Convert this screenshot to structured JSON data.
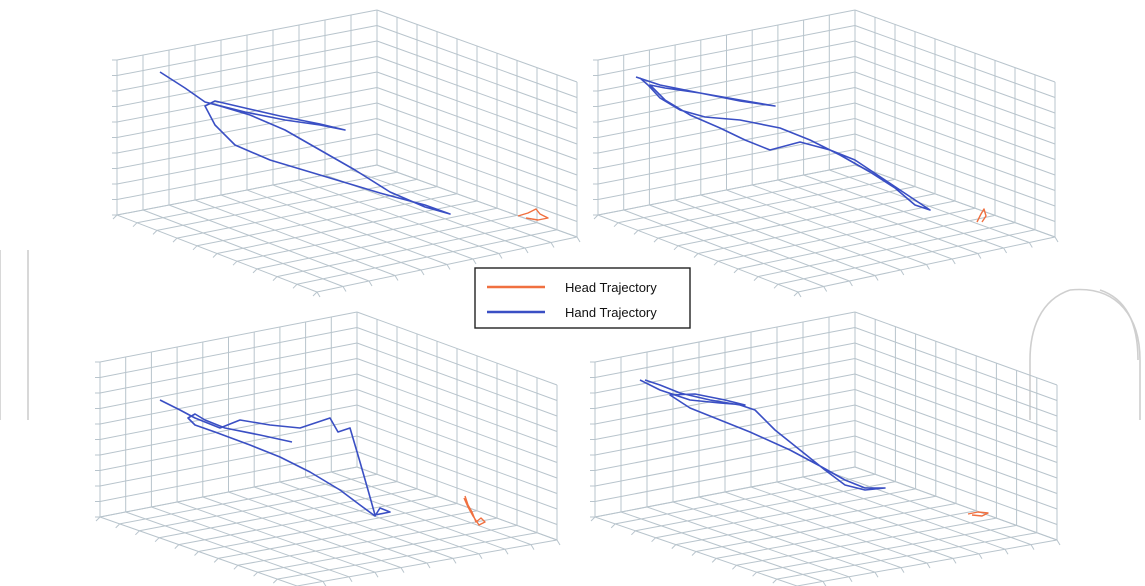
{
  "chart_data": {
    "type": "line",
    "plots": [
      {
        "id": "top-left",
        "series": [
          {
            "name": "Hand Trajectory",
            "points": [
              [
                160,
                72
              ],
              [
                185,
                88
              ],
              [
                205,
                102
              ],
              [
                245,
                112
              ],
              [
                285,
                120
              ],
              [
                320,
                125
              ],
              [
                345,
                130
              ],
              [
                320,
                124
              ],
              [
                280,
                116
              ],
              [
                245,
                108
              ],
              [
                215,
                101
              ],
              [
                205,
                106
              ],
              [
                215,
                125
              ],
              [
                235,
                145
              ],
              [
                270,
                160
              ],
              [
                320,
                175
              ],
              [
                380,
                193
              ],
              [
                425,
                205
              ],
              [
                450,
                214
              ],
              [
                425,
                207
              ],
              [
                390,
                192
              ],
              [
                355,
                170
              ],
              [
                320,
                150
              ],
              [
                285,
                130
              ],
              [
                250,
                115
              ],
              [
                220,
                106
              ],
              [
                205,
                102
              ]
            ]
          },
          {
            "name": "Head Trajectory",
            "points": [
              [
                518,
                216
              ],
              [
                528,
                213
              ],
              [
                536,
                209
              ],
              [
                540,
                214
              ],
              [
                548,
                218
              ],
              [
                538,
                220
              ],
              [
                526,
                218
              ]
            ]
          }
        ]
      },
      {
        "id": "top-right",
        "series": [
          {
            "name": "Hand Trajectory",
            "points": [
              [
                636,
                77
              ],
              [
                660,
                85
              ],
              [
                700,
                93
              ],
              [
                740,
                101
              ],
              [
                775,
                106
              ],
              [
                740,
                100
              ],
              [
                700,
                93
              ],
              [
                665,
                88
              ],
              [
                650,
                85
              ],
              [
                665,
                100
              ],
              [
                690,
                115
              ],
              [
                720,
                128
              ],
              [
                745,
                140
              ],
              [
                770,
                150
              ],
              [
                800,
                142
              ],
              [
                830,
                150
              ],
              [
                855,
                160
              ],
              [
                885,
                180
              ],
              [
                915,
                200
              ],
              [
                930,
                210
              ],
              [
                915,
                205
              ],
              [
                895,
                188
              ],
              [
                870,
                172
              ],
              [
                840,
                155
              ],
              [
                810,
                140
              ],
              [
                780,
                128
              ],
              [
                740,
                120
              ],
              [
                705,
                117
              ],
              [
                680,
                110
              ],
              [
                660,
                98
              ],
              [
                648,
                85
              ],
              [
                640,
                78
              ]
            ]
          },
          {
            "name": "Head Trajectory",
            "points": [
              [
                977,
                222
              ],
              [
                981,
                214
              ],
              [
                984,
                209
              ],
              [
                986,
                216
              ],
              [
                982,
                222
              ]
            ]
          }
        ]
      },
      {
        "id": "bottom-left",
        "series": [
          {
            "name": "Hand Trajectory",
            "points": [
              [
                160,
                400
              ],
              [
                180,
                410
              ],
              [
                195,
                418
              ],
              [
                220,
                428
              ],
              [
                240,
                420
              ],
              [
                270,
                425
              ],
              [
                300,
                428
              ],
              [
                330,
                418
              ],
              [
                338,
                432
              ],
              [
                350,
                428
              ],
              [
                360,
                462
              ],
              [
                368,
                490
              ],
              [
                375,
                515
              ],
              [
                390,
                512
              ],
              [
                380,
                508
              ],
              [
                375,
                516
              ],
              [
                360,
                505
              ],
              [
                340,
                490
              ],
              [
                310,
                472
              ],
              [
                280,
                457
              ],
              [
                250,
                445
              ],
              [
                215,
                432
              ],
              [
                195,
                425
              ],
              [
                188,
                418
              ],
              [
                195,
                414
              ],
              [
                205,
                420
              ],
              [
                225,
                428
              ],
              [
                260,
                435
              ],
              [
                292,
                442
              ]
            ]
          },
          {
            "name": "Head Trajectory",
            "points": [
              [
                465,
                496
              ],
              [
                468,
                505
              ],
              [
                472,
                512
              ],
              [
                476,
                522
              ],
              [
                481,
                518
              ],
              [
                485,
                522
              ],
              [
                479,
                525
              ],
              [
                473,
                516
              ],
              [
                468,
                507
              ],
              [
                464,
                498
              ]
            ]
          }
        ]
      },
      {
        "id": "bottom-right",
        "series": [
          {
            "name": "Hand Trajectory",
            "points": [
              [
                640,
                380
              ],
              [
                660,
                390
              ],
              [
                690,
                400
              ],
              [
                720,
                403
              ],
              [
                745,
                405
              ],
              [
                725,
                400
              ],
              [
                695,
                394
              ],
              [
                670,
                395
              ],
              [
                690,
                408
              ],
              [
                720,
                420
              ],
              [
                750,
                432
              ],
              [
                790,
                450
              ],
              [
                820,
                466
              ],
              [
                845,
                480
              ],
              [
                865,
                488
              ],
              [
                885,
                488
              ],
              [
                865,
                490
              ],
              [
                845,
                485
              ],
              [
                825,
                470
              ],
              [
                800,
                450
              ],
              [
                775,
                430
              ],
              [
                755,
                410
              ],
              [
                740,
                405
              ],
              [
                710,
                400
              ],
              [
                680,
                393
              ],
              [
                660,
                385
              ],
              [
                645,
                380
              ]
            ]
          },
          {
            "name": "Head Trajectory",
            "points": [
              [
                968,
                514
              ],
              [
                978,
                512
              ],
              [
                988,
                513
              ],
              [
                982,
                516
              ],
              [
                972,
                515
              ]
            ]
          }
        ]
      }
    ],
    "legend": {
      "placement": "center",
      "entries": [
        {
          "label": "Head Trajectory",
          "color": "#f07040"
        },
        {
          "label": "Hand Trajectory",
          "color": "#3a4fc4"
        }
      ]
    },
    "grid": true,
    "colors": {
      "hand": "#3a4fc4",
      "head": "#f07040",
      "grid": "#b8c4cc",
      "watermark": "#c9c9c9"
    }
  }
}
